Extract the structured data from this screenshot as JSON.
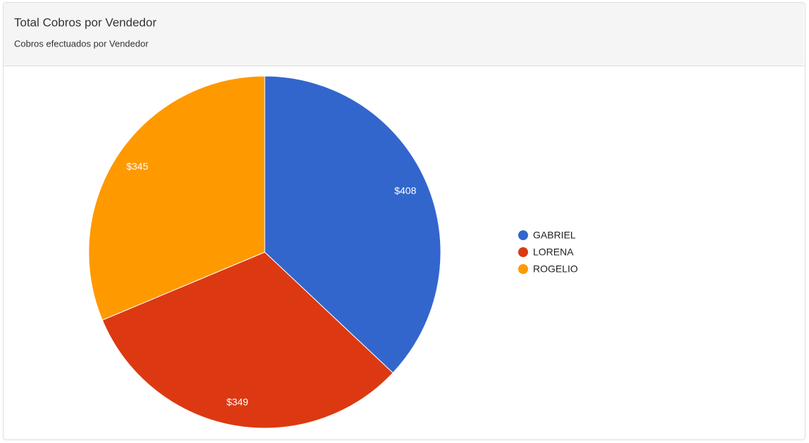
{
  "chart_data": {
    "type": "pie",
    "title": "Total Cobros por Vendedor",
    "subtitle": "Cobros efectuados por Vendedor",
    "categories": [
      "GABRIEL",
      "LORENA",
      "ROGELIO"
    ],
    "values": [
      408,
      349,
      345
    ],
    "value_labels": [
      "$408",
      "$349",
      "$345"
    ],
    "colors": [
      "#3366cc",
      "#dc3912",
      "#ff9900"
    ],
    "legend": "right"
  }
}
